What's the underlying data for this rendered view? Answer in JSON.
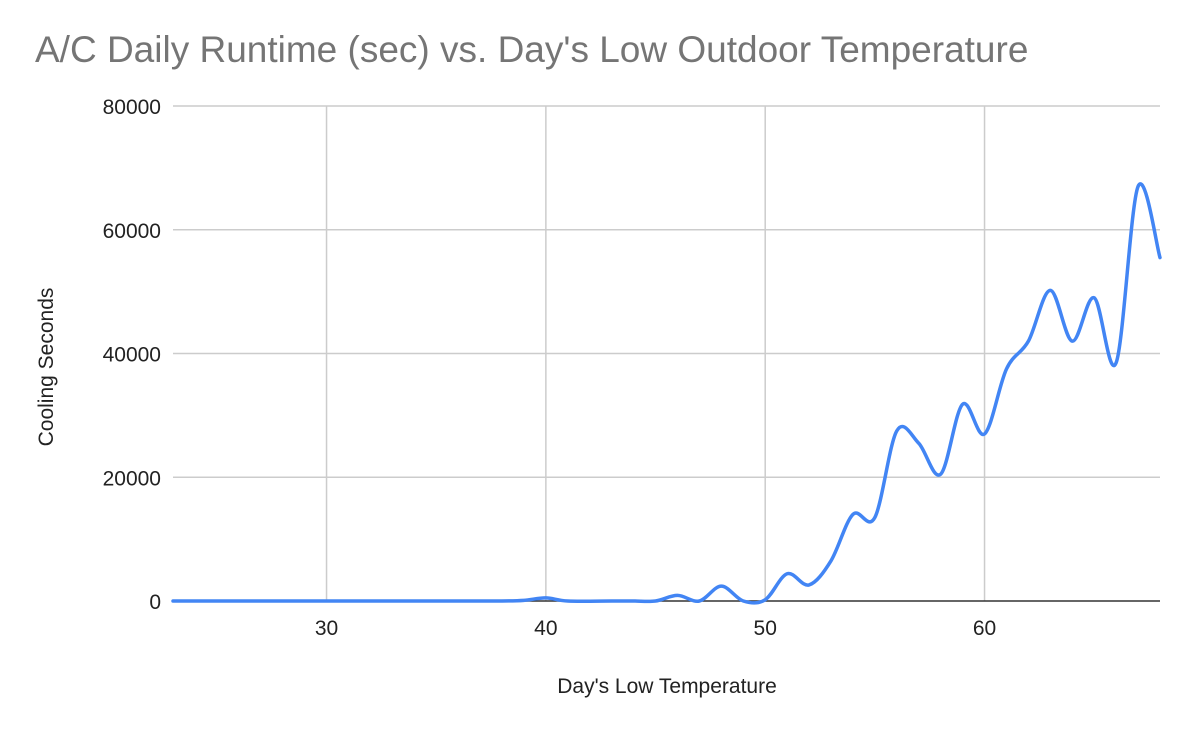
{
  "chart_data": {
    "type": "line",
    "title": "A/C Daily Runtime (sec) vs. Day's Low Outdoor Temperature",
    "xlabel": "Day's Low Temperature",
    "ylabel": "Cooling Seconds",
    "xlim": [
      23,
      68
    ],
    "ylim": [
      0,
      80000
    ],
    "x_ticks": [
      30,
      40,
      50,
      60
    ],
    "y_ticks": [
      0,
      20000,
      40000,
      60000,
      80000
    ],
    "grid": true,
    "legend": "none",
    "series": [
      {
        "color": "#4285f4",
        "smooth": true,
        "points": [
          [
            23,
            0
          ],
          [
            25,
            0
          ],
          [
            28,
            0
          ],
          [
            30,
            0
          ],
          [
            32,
            0
          ],
          [
            35,
            0
          ],
          [
            38,
            0
          ],
          [
            39,
            100
          ],
          [
            40,
            500
          ],
          [
            41,
            0
          ],
          [
            43,
            0
          ],
          [
            44,
            0
          ],
          [
            45,
            0
          ],
          [
            46,
            900
          ],
          [
            47,
            0
          ],
          [
            48,
            2400
          ],
          [
            49,
            0
          ],
          [
            50,
            200
          ],
          [
            51,
            4400
          ],
          [
            52,
            2600
          ],
          [
            53,
            6500
          ],
          [
            54,
            14000
          ],
          [
            55,
            13500
          ],
          [
            56,
            27500
          ],
          [
            57,
            25500
          ],
          [
            58,
            20500
          ],
          [
            59,
            31800
          ],
          [
            60,
            27000
          ],
          [
            61,
            37500
          ],
          [
            62,
            42000
          ],
          [
            63,
            50200
          ],
          [
            64,
            42000
          ],
          [
            65,
            49000
          ],
          [
            66,
            38500
          ],
          [
            67,
            67000
          ],
          [
            68,
            55500
          ]
        ]
      }
    ]
  }
}
